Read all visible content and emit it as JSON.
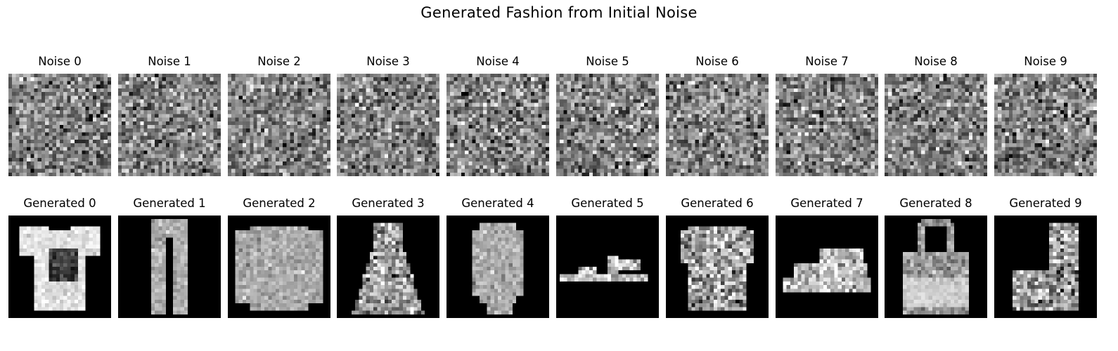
{
  "title": "Generated Fashion from Initial Noise",
  "noise_panels": [
    {
      "label": "Noise 0"
    },
    {
      "label": "Noise 1"
    },
    {
      "label": "Noise 2"
    },
    {
      "label": "Noise 3"
    },
    {
      "label": "Noise 4"
    },
    {
      "label": "Noise 5"
    },
    {
      "label": "Noise 6"
    },
    {
      "label": "Noise 7"
    },
    {
      "label": "Noise 8"
    },
    {
      "label": "Noise 9"
    }
  ],
  "generated_panels": [
    {
      "label": "Generated 0",
      "item": "t-shirt"
    },
    {
      "label": "Generated 1",
      "item": "trousers"
    },
    {
      "label": "Generated 2",
      "item": "pullover"
    },
    {
      "label": "Generated 3",
      "item": "dress"
    },
    {
      "label": "Generated 4",
      "item": "coat"
    },
    {
      "label": "Generated 5",
      "item": "sandal"
    },
    {
      "label": "Generated 6",
      "item": "shirt"
    },
    {
      "label": "Generated 7",
      "item": "sneaker"
    },
    {
      "label": "Generated 8",
      "item": "bag"
    },
    {
      "label": "Generated 9",
      "item": "ankle-boot"
    }
  ]
}
